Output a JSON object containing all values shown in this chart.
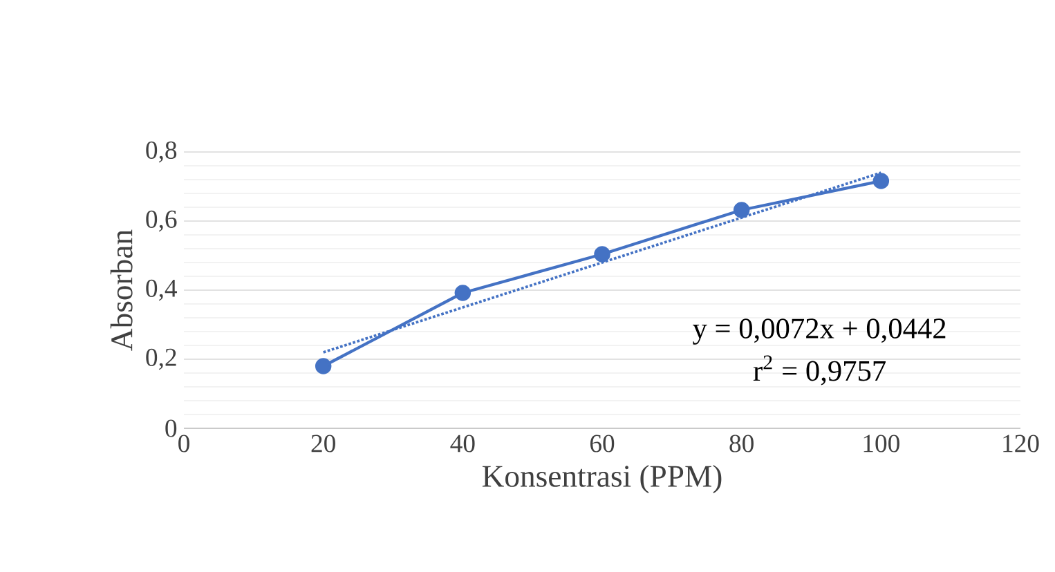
{
  "chart_data": {
    "type": "line",
    "xlabel": "Konsentrasi (PPM)",
    "ylabel": "Absorban",
    "x": [
      20,
      40,
      60,
      80,
      100
    ],
    "series": [
      {
        "color": "#4472c4",
        "values": [
          0.18,
          0.392,
          0.504,
          0.632,
          0.716
        ],
        "marker": "circle",
        "line_style": "solid"
      },
      {
        "type": "line",
        "color": "#4472c4",
        "x": [
          20,
          100
        ],
        "values": [
          0.22,
          0.74
        ],
        "marker": "none",
        "line_style": "dotted"
      }
    ],
    "annotations": [
      "y = 0,0072x + 0,0442",
      "r$^{2}$ = 0,9757"
    ],
    "xlim": [
      0,
      120
    ],
    "xticks": [
      0,
      20,
      40,
      60,
      80,
      100,
      120
    ],
    "ylim": [
      0,
      0.8
    ],
    "yticks": [
      0,
      {
        "value": 0.2,
        "label": "0,2"
      },
      {
        "value": 0.4,
        "label": "0,4"
      },
      {
        "value": 0.6,
        "label": "0,6"
      },
      {
        "value": 0.8,
        "label": "0,8"
      }
    ],
    "grid": "y"
  }
}
